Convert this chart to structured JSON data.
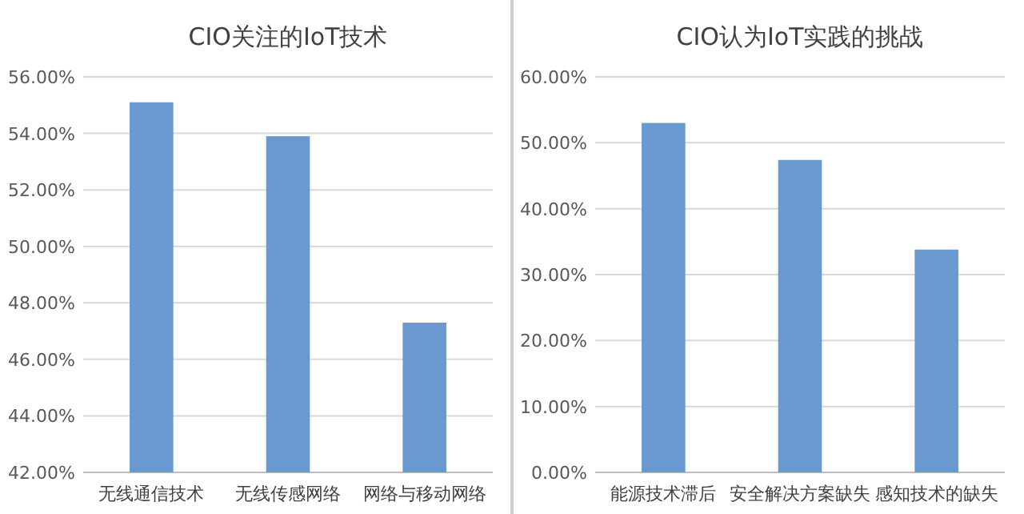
{
  "chart_data": [
    {
      "type": "bar",
      "title": "CIO关注的IoT技术",
      "categories": [
        "无线通信技术",
        "无线传感网络",
        "网络与移动网络"
      ],
      "values": [
        55.1,
        53.9,
        47.3
      ],
      "color": "#6a99d0",
      "ylim": [
        42,
        56
      ],
      "yticks": [
        {
          "value": 42,
          "label": "42.00%"
        },
        {
          "value": 44,
          "label": "44.00%"
        },
        {
          "value": 46,
          "label": "46.00%"
        },
        {
          "value": 48,
          "label": "48.00%"
        },
        {
          "value": 50,
          "label": "50.00%"
        },
        {
          "value": 52,
          "label": "52.00%"
        },
        {
          "value": 54,
          "label": "54.00%"
        },
        {
          "value": 56,
          "label": "56.00%"
        }
      ],
      "grid": "y"
    },
    {
      "type": "bar",
      "title": "CIO认为IoT实践的挑战",
      "categories": [
        "能源技术滞后",
        "安全解决方案缺失",
        "感知技术的缺失"
      ],
      "values": [
        53.0,
        47.4,
        33.8
      ],
      "color": "#6a99d0",
      "ylim": [
        0,
        60
      ],
      "yticks": [
        {
          "value": 0,
          "label": "0.00%"
        },
        {
          "value": 10,
          "label": "10.00%"
        },
        {
          "value": 20,
          "label": "20.00%"
        },
        {
          "value": 30,
          "label": "30.00%"
        },
        {
          "value": 40,
          "label": "40.00%"
        },
        {
          "value": 50,
          "label": "50.00%"
        },
        {
          "value": 60,
          "label": "60.00%"
        }
      ],
      "grid": "y"
    }
  ]
}
